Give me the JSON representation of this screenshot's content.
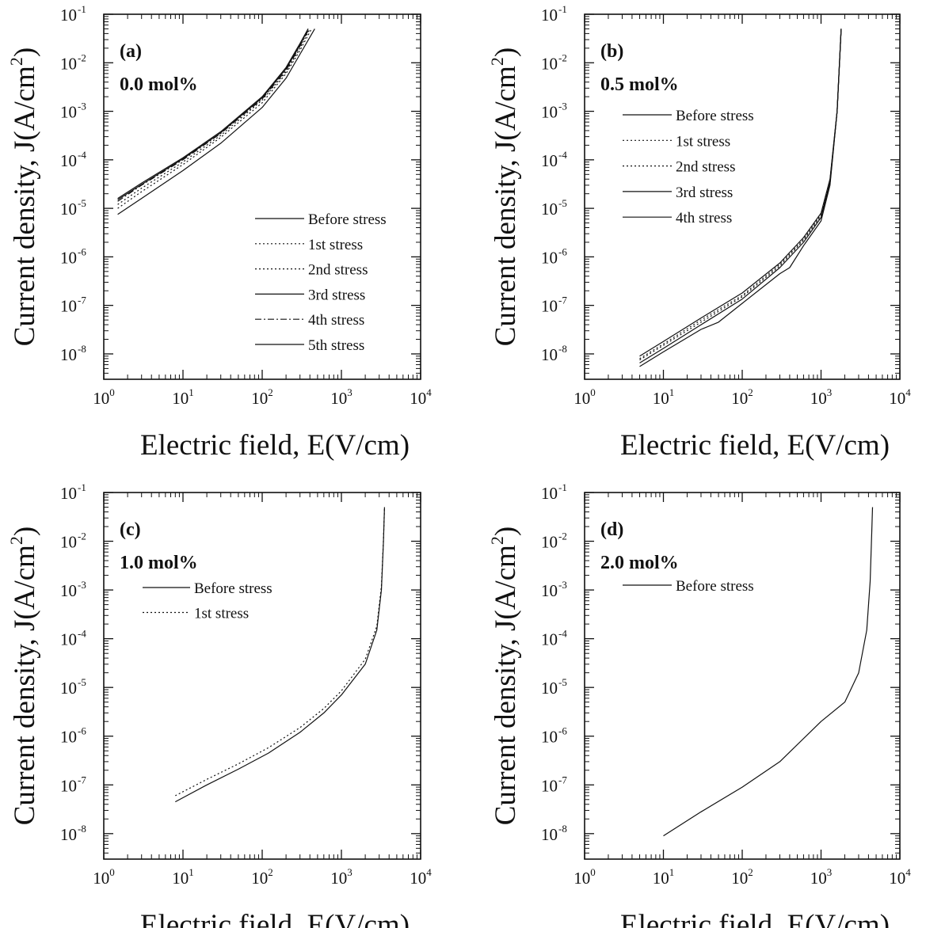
{
  "chart_data": [
    {
      "type": "line",
      "panel_label": "(a)",
      "annotation": "0.0 mol%",
      "xlabel": "Electric field, E(V/cm)",
      "ylabel": "Current density, J(A/cm",
      "ylabel_sup": "2",
      "ylabel_close": ")",
      "xscale": "log",
      "yscale": "log",
      "xlim": [
        1,
        10000
      ],
      "ylim": [
        3e-09,
        0.1
      ],
      "x_ticks": [
        1,
        10,
        100,
        1000,
        10000
      ],
      "y_ticks": [
        1e-08,
        1e-07,
        1e-06,
        1e-05,
        0.0001,
        0.001,
        0.01,
        0.1
      ],
      "x_tick_labels": [
        {
          "base": "10",
          "exp": "0"
        },
        {
          "base": "10",
          "exp": "1"
        },
        {
          "base": "10",
          "exp": "2"
        },
        {
          "base": "10",
          "exp": "3"
        },
        {
          "base": "10",
          "exp": "4"
        }
      ],
      "y_tick_labels": [
        {
          "base": "10",
          "exp": "-8"
        },
        {
          "base": "10",
          "exp": "-7"
        },
        {
          "base": "10",
          "exp": "-6"
        },
        {
          "base": "10",
          "exp": "-5"
        },
        {
          "base": "10",
          "exp": "-4"
        },
        {
          "base": "10",
          "exp": "-3"
        },
        {
          "base": "10",
          "exp": "-2"
        },
        {
          "base": "10",
          "exp": "-1"
        }
      ],
      "legend_position": "lower-right",
      "series": [
        {
          "name": "Before stress",
          "dash": "solid",
          "x": [
            1.5,
            3,
            10,
            30,
            100,
            200,
            300,
            380
          ],
          "y": [
            1.6e-05,
            3.3e-05,
            0.00011,
            0.00038,
            0.002,
            0.008,
            0.025,
            0.05
          ]
        },
        {
          "name": "1st stress",
          "dash": "dotted",
          "x": [
            1.5,
            3,
            10,
            30,
            100,
            200,
            300,
            400
          ],
          "y": [
            1.2e-05,
            2.6e-05,
            9e-05,
            0.00032,
            0.0017,
            0.0065,
            0.02,
            0.05
          ]
        },
        {
          "name": "2nd stress",
          "dash": "dotted",
          "x": [
            1.5,
            3,
            10,
            30,
            100,
            200,
            300,
            420
          ],
          "y": [
            1e-05,
            2.2e-05,
            8e-05,
            0.00029,
            0.0015,
            0.006,
            0.018,
            0.05
          ]
        },
        {
          "name": "3rd stress",
          "dash": "solid",
          "x": [
            1.5,
            3,
            10,
            30,
            100,
            200,
            300,
            380
          ],
          "y": [
            1.5e-05,
            3.1e-05,
            0.000105,
            0.00036,
            0.0019,
            0.0075,
            0.023,
            0.05
          ]
        },
        {
          "name": "4th stress",
          "dash": "dashdot",
          "x": [
            1.5,
            3,
            10,
            30,
            100,
            200,
            300,
            390
          ],
          "y": [
            1.4e-05,
            3e-05,
            0.0001,
            0.00035,
            0.0018,
            0.007,
            0.022,
            0.05
          ]
        },
        {
          "name": "5th stress",
          "dash": "solid",
          "x": [
            1.5,
            3,
            10,
            30,
            100,
            200,
            300,
            460
          ],
          "y": [
            7.5e-06,
            1.6e-05,
            6e-05,
            0.00022,
            0.0012,
            0.0048,
            0.015,
            0.05
          ]
        }
      ]
    },
    {
      "type": "line",
      "panel_label": "(b)",
      "annotation": "0.5 mol%",
      "xlabel": "Electric field, E(V/cm)",
      "ylabel": "Current density, J(A/cm",
      "ylabel_sup": "2",
      "ylabel_close": ")",
      "xscale": "log",
      "yscale": "log",
      "xlim": [
        1,
        10000
      ],
      "ylim": [
        3e-09,
        0.1
      ],
      "x_ticks": [
        1,
        10,
        100,
        1000,
        10000
      ],
      "y_ticks": [
        1e-08,
        1e-07,
        1e-06,
        1e-05,
        0.0001,
        0.001,
        0.01,
        0.1
      ],
      "x_tick_labels": [
        {
          "base": "10",
          "exp": "0"
        },
        {
          "base": "10",
          "exp": "1"
        },
        {
          "base": "10",
          "exp": "2"
        },
        {
          "base": "10",
          "exp": "3"
        },
        {
          "base": "10",
          "exp": "4"
        }
      ],
      "y_tick_labels": [
        {
          "base": "10",
          "exp": "-8"
        },
        {
          "base": "10",
          "exp": "-7"
        },
        {
          "base": "10",
          "exp": "-6"
        },
        {
          "base": "10",
          "exp": "-5"
        },
        {
          "base": "10",
          "exp": "-4"
        },
        {
          "base": "10",
          "exp": "-3"
        },
        {
          "base": "10",
          "exp": "-2"
        },
        {
          "base": "10",
          "exp": "-1"
        }
      ],
      "legend_position": "upper-left",
      "series": [
        {
          "name": "Before stress",
          "dash": "solid",
          "x": [
            5,
            10,
            30,
            100,
            300,
            600,
            1000,
            1300,
            1600,
            1800
          ],
          "y": [
            9e-09,
            1.8e-08,
            5.5e-08,
            1.8e-07,
            7.5e-07,
            2.5e-06,
            8e-06,
            4e-05,
            0.001,
            0.05
          ]
        },
        {
          "name": "1st stress",
          "dash": "dotted",
          "x": [
            5,
            10,
            30,
            100,
            300,
            600,
            1000,
            1300,
            1600,
            1800
          ],
          "y": [
            7.5e-09,
            1.5e-08,
            4.5e-08,
            1.5e-07,
            6.5e-07,
            2.2e-06,
            7e-06,
            3.5e-05,
            0.001,
            0.05
          ]
        },
        {
          "name": "2nd stress",
          "dash": "dotted",
          "x": [
            5,
            10,
            30,
            100,
            300,
            600,
            1000,
            1300,
            1600,
            1800
          ],
          "y": [
            8e-09,
            1.6e-08,
            5e-08,
            1.6e-07,
            7e-07,
            2.3e-06,
            7.5e-06,
            3.8e-05,
            0.001,
            0.05
          ]
        },
        {
          "name": "3rd stress",
          "dash": "solid",
          "x": [
            5,
            10,
            30,
            100,
            300,
            600,
            1000,
            1300,
            1600,
            1800
          ],
          "y": [
            6.5e-09,
            1.3e-08,
            4e-08,
            1.35e-07,
            6e-07,
            2e-06,
            6.5e-06,
            3.3e-05,
            0.001,
            0.05
          ]
        },
        {
          "name": "4th stress",
          "dash": "solid",
          "x": [
            5,
            10,
            30,
            50,
            100,
            300,
            400,
            600,
            1000,
            1300,
            1600,
            1800
          ],
          "y": [
            5.5e-09,
            1.1e-08,
            3.2e-08,
            4.5e-08,
            1.1e-07,
            4.5e-07,
            6e-07,
            1.7e-06,
            5.5e-06,
            3e-05,
            0.001,
            0.05
          ]
        }
      ]
    },
    {
      "type": "line",
      "panel_label": "(c)",
      "annotation": "1.0 mol%",
      "xlabel": "Electric field, E(V/cm)",
      "ylabel": "Current density, J(A/cm",
      "ylabel_sup": "2",
      "ylabel_close": ")",
      "xscale": "log",
      "yscale": "log",
      "xlim": [
        1,
        10000
      ],
      "ylim": [
        3e-09,
        0.1
      ],
      "x_ticks": [
        1,
        10,
        100,
        1000,
        10000
      ],
      "y_ticks": [
        1e-08,
        1e-07,
        1e-06,
        1e-05,
        0.0001,
        0.001,
        0.01,
        0.1
      ],
      "x_tick_labels": [
        {
          "base": "10",
          "exp": "0"
        },
        {
          "base": "10",
          "exp": "1"
        },
        {
          "base": "10",
          "exp": "2"
        },
        {
          "base": "10",
          "exp": "3"
        },
        {
          "base": "10",
          "exp": "4"
        }
      ],
      "y_tick_labels": [
        {
          "base": "10",
          "exp": "-8"
        },
        {
          "base": "10",
          "exp": "-7"
        },
        {
          "base": "10",
          "exp": "-6"
        },
        {
          "base": "10",
          "exp": "-5"
        },
        {
          "base": "10",
          "exp": "-4"
        },
        {
          "base": "10",
          "exp": "-3"
        },
        {
          "base": "10",
          "exp": "-2"
        },
        {
          "base": "10",
          "exp": "-1"
        }
      ],
      "legend_position": "upper-left",
      "series": [
        {
          "name": "Before stress",
          "dash": "solid",
          "x": [
            8,
            20,
            50,
            120,
            300,
            600,
            1000,
            2000,
            2800,
            3200,
            3400,
            3500
          ],
          "y": [
            4.5e-08,
            1e-07,
            2.1e-07,
            4.5e-07,
            1.2e-06,
            3e-06,
            7e-06,
            3e-05,
            0.00015,
            0.001,
            0.01,
            0.05
          ]
        },
        {
          "name": "1st stress",
          "dash": "dotted",
          "x": [
            8,
            20,
            50,
            120,
            300,
            600,
            1000,
            2000,
            2800,
            3200,
            3400,
            3500
          ],
          "y": [
            6e-08,
            1.3e-07,
            2.7e-07,
            5.8e-07,
            1.5e-06,
            3.7e-06,
            8.5e-06,
            3.8e-05,
            0.00018,
            0.0012,
            0.011,
            0.05
          ]
        }
      ]
    },
    {
      "type": "line",
      "panel_label": "(d)",
      "annotation": "2.0 mol%",
      "xlabel": "Electric field, E(V/cm)",
      "ylabel": "Current density, J(A/cm",
      "ylabel_sup": "2",
      "ylabel_close": ")",
      "xscale": "log",
      "yscale": "log",
      "xlim": [
        1,
        10000
      ],
      "ylim": [
        3e-09,
        0.1
      ],
      "x_ticks": [
        1,
        10,
        100,
        1000,
        10000
      ],
      "y_ticks": [
        1e-08,
        1e-07,
        1e-06,
        1e-05,
        0.0001,
        0.001,
        0.01,
        0.1
      ],
      "x_tick_labels": [
        {
          "base": "10",
          "exp": "0"
        },
        {
          "base": "10",
          "exp": "1"
        },
        {
          "base": "10",
          "exp": "2"
        },
        {
          "base": "10",
          "exp": "3"
        },
        {
          "base": "10",
          "exp": "4"
        }
      ],
      "y_tick_labels": [
        {
          "base": "10",
          "exp": "-8"
        },
        {
          "base": "10",
          "exp": "-7"
        },
        {
          "base": "10",
          "exp": "-6"
        },
        {
          "base": "10",
          "exp": "-5"
        },
        {
          "base": "10",
          "exp": "-4"
        },
        {
          "base": "10",
          "exp": "-3"
        },
        {
          "base": "10",
          "exp": "-2"
        },
        {
          "base": "10",
          "exp": "-1"
        }
      ],
      "legend_position": "upper-left",
      "series": [
        {
          "name": "Before stress",
          "dash": "solid",
          "x": [
            10,
            30,
            100,
            300,
            1000,
            2000,
            3000,
            3800,
            4200,
            4400,
            4500
          ],
          "y": [
            9e-09,
            2.8e-08,
            9e-08,
            3e-07,
            2e-06,
            5e-06,
            2e-05,
            0.00015,
            0.0015,
            0.015,
            0.05
          ]
        }
      ]
    }
  ]
}
